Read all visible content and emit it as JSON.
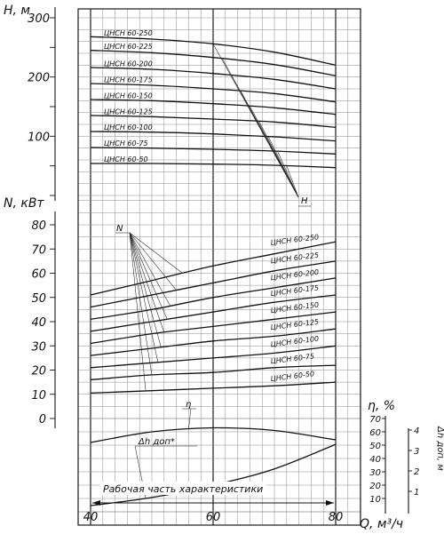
{
  "chart_data": [
    {
      "type": "line",
      "ylabel": "H, м",
      "ylim": [
        0,
        300
      ],
      "xlim": [
        40,
        80
      ],
      "yticks": [
        "300",
        "200",
        "100"
      ],
      "pointer": "H",
      "series": [
        {
          "name": "ЦНСН 60-250",
          "x": [
            40,
            50,
            60,
            70,
            80
          ],
          "values": [
            268,
            264,
            256,
            242,
            220
          ]
        },
        {
          "name": "ЦНСН 60-225",
          "x": [
            40,
            50,
            60,
            70,
            80
          ],
          "values": [
            245,
            241,
            233,
            221,
            202
          ]
        },
        {
          "name": "ЦНСН 60-200",
          "x": [
            40,
            50,
            60,
            70,
            80
          ],
          "values": [
            216,
            213,
            206,
            196,
            180
          ]
        },
        {
          "name": "ЦНСН 60-175",
          "x": [
            40,
            50,
            60,
            70,
            80
          ],
          "values": [
            189,
            186,
            180,
            172,
            158
          ]
        },
        {
          "name": "ЦНСН 60-150",
          "x": [
            40,
            50,
            60,
            70,
            80
          ],
          "values": [
            162,
            160,
            155,
            148,
            137
          ]
        },
        {
          "name": "ЦНСН 60-125",
          "x": [
            40,
            50,
            60,
            70,
            80
          ],
          "values": [
            135,
            133,
            129,
            124,
            115
          ]
        },
        {
          "name": "ЦНСН 60-100",
          "x": [
            40,
            50,
            60,
            70,
            80
          ],
          "values": [
            108,
            107,
            104,
            99,
            92
          ]
        },
        {
          "name": "ЦНСН 60-75",
          "x": [
            40,
            50,
            60,
            70,
            80
          ],
          "values": [
            81,
            80,
            78,
            75,
            70
          ]
        },
        {
          "name": "ЦНСН 60-50",
          "x": [
            40,
            50,
            60,
            70,
            80
          ],
          "values": [
            54,
            54,
            53,
            51,
            47
          ]
        }
      ]
    },
    {
      "type": "line",
      "ylabel": "N, кВт",
      "ylim": [
        0,
        80
      ],
      "xlim": [
        40,
        80
      ],
      "yticks": [
        "80",
        "70",
        "60",
        "50",
        "40",
        "30",
        "20",
        "10",
        "0"
      ],
      "pointer": "N",
      "series": [
        {
          "name": "ЦНСН 60-250",
          "x": [
            40,
            50,
            60,
            70,
            80
          ],
          "values": [
            51,
            57,
            63,
            68,
            73
          ]
        },
        {
          "name": "ЦНСН 60-225",
          "x": [
            40,
            50,
            60,
            70,
            80
          ],
          "values": [
            46,
            51,
            56,
            61,
            65
          ]
        },
        {
          "name": "ЦНСН 60-200",
          "x": [
            40,
            50,
            60,
            70,
            80
          ],
          "values": [
            41,
            45,
            50,
            54,
            58
          ]
        },
        {
          "name": "ЦНСН 60-175",
          "x": [
            40,
            50,
            60,
            70,
            80
          ],
          "values": [
            36,
            40,
            44,
            48,
            51
          ]
        },
        {
          "name": "ЦНСН 60-150",
          "x": [
            40,
            50,
            60,
            70,
            80
          ],
          "values": [
            31,
            35,
            38,
            41,
            44
          ]
        },
        {
          "name": "ЦНСН 60-125",
          "x": [
            40,
            50,
            60,
            70,
            80
          ],
          "values": [
            26,
            29,
            32,
            34,
            37
          ]
        },
        {
          "name": "ЦНСН 60-100",
          "x": [
            40,
            50,
            60,
            70,
            80
          ],
          "values": [
            21,
            23,
            25,
            27,
            30
          ]
        },
        {
          "name": "ЦНСН 60-75",
          "x": [
            40,
            50,
            60,
            70,
            80
          ],
          "values": [
            16,
            18,
            19,
            21,
            22
          ]
        },
        {
          "name": "ЦНСН 60-50",
          "x": [
            40,
            50,
            60,
            70,
            80
          ],
          "values": [
            10.5,
            11.5,
            12.5,
            13.5,
            15
          ]
        }
      ]
    },
    {
      "type": "line",
      "ylabel": "η, %",
      "ylim": [
        0,
        70
      ],
      "xlim": [
        40,
        80
      ],
      "yticks": [
        "70",
        "60",
        "50",
        "40",
        "30",
        "20",
        "10"
      ],
      "series": [
        {
          "name": "η",
          "x": [
            40,
            50,
            60,
            70,
            80
          ],
          "values": [
            52,
            60,
            63,
            61,
            54
          ]
        }
      ]
    },
    {
      "type": "line",
      "ylabel": "Δh доп, м",
      "ylim": [
        0,
        4
      ],
      "xlim": [
        40,
        80
      ],
      "yticks": [
        "4",
        "3",
        "2",
        "1"
      ],
      "series": [
        {
          "name": "Δh доп*",
          "x": [
            40,
            50,
            60,
            70,
            80
          ],
          "values": [
            0.3,
            0.7,
            1.3,
            2.1,
            3.3
          ]
        }
      ]
    }
  ],
  "x_axis": {
    "label": "Q, м³/ч",
    "ticks": [
      "40",
      "60",
      "80"
    ]
  },
  "range_label": "Рабочая часть характеристики"
}
